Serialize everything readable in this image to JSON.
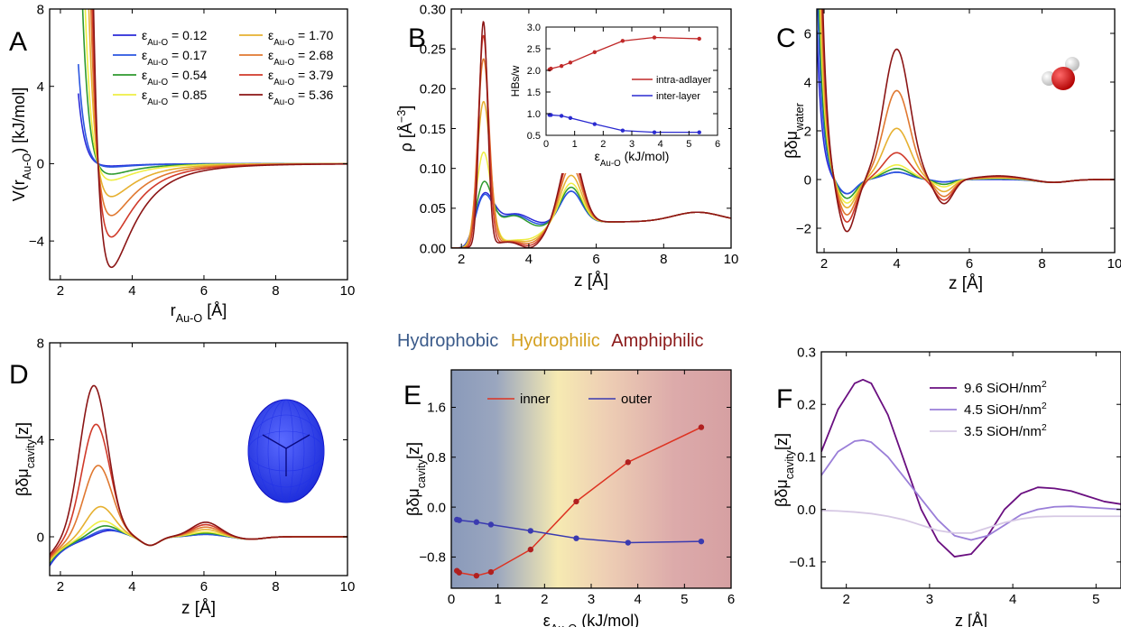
{
  "figure": {
    "category_labels": [
      {
        "text": "Hydrophobic",
        "color": "#3a5a8a"
      },
      {
        "text": "Hydrophilic",
        "color": "#d4a020"
      },
      {
        "text": "Amphiphilic",
        "color": "#8b1a1a"
      }
    ]
  },
  "colors": {
    "eps": [
      "#2a2ad8",
      "#2a55e0",
      "#2e9a2e",
      "#eeee44",
      "#e6b030",
      "#e07830",
      "#d03a2a",
      "#8b1515"
    ],
    "inner": "#dd3322",
    "inner_dots": "#b02020",
    "outer": "#3a3ab0",
    "intra": "#c02828",
    "inter": "#2a2ad0",
    "silanol": [
      "#6a0f80",
      "#9a7ed8",
      "#d6c8e4"
    ]
  },
  "chart_data": [
    {
      "panel": "A",
      "type": "line",
      "xlabel": "r",
      "xlabel_sub": "Au-O",
      "xlabel_unit": " [Å]",
      "ylabel": "V(r",
      "ylabel_sub": "Au-O",
      "ylabel_unit": ") [kJ/mol]",
      "xlim": [
        1.7,
        10
      ],
      "ylim": [
        -6,
        8
      ],
      "xticks": [
        2,
        4,
        6,
        8,
        10
      ],
      "yticks": [
        -4,
        0,
        4,
        8
      ],
      "legend_columns": 2,
      "legend_prefix": "ε",
      "legend_sub": "Au-O",
      "legend_position": "top",
      "epsilons": [
        0.12,
        0.17,
        0.54,
        0.85,
        1.7,
        2.68,
        3.79,
        5.36
      ],
      "series": [
        {
          "name": "0.12"
        },
        {
          "name": "0.17"
        },
        {
          "name": "0.54"
        },
        {
          "name": "0.85"
        },
        {
          "name": "1.70"
        },
        {
          "name": "2.68"
        },
        {
          "name": "3.79"
        },
        {
          "name": "5.36"
        }
      ]
    },
    {
      "panel": "B",
      "type": "line",
      "xlabel": "z [Å]",
      "ylabel": "ρ [Å",
      "ylabel_sup": "−3",
      "ylabel_end": "]",
      "xlim": [
        1.7,
        10
      ],
      "ylim": [
        0,
        0.3
      ],
      "xticks": [
        2,
        4,
        6,
        8,
        10
      ],
      "yticks": [
        0.0,
        0.05,
        0.1,
        0.15,
        0.2,
        0.25,
        0.3
      ],
      "first_peak": {
        "x": 2.65,
        "heights": [
          0.06,
          0.058,
          0.075,
          0.12,
          0.185,
          0.24,
          0.27,
          0.288
        ]
      },
      "second_peak": {
        "x": 5.25,
        "heights": [
          0.04,
          0.04,
          0.045,
          0.05,
          0.06,
          0.072,
          0.082,
          0.09
        ]
      },
      "inset": {
        "type": "line",
        "ylabel": "HBs/w",
        "xlabel": "ε",
        "xlabel_sub": "Au-O",
        "xlabel_unit": " (kJ/mol)",
        "xlim": [
          0,
          6
        ],
        "ylim": [
          0.5,
          3.0
        ],
        "xticks": [
          0,
          1,
          2,
          3,
          4,
          5,
          6
        ],
        "yticks": [
          0.5,
          1.0,
          1.5,
          2.0,
          2.5,
          3.0
        ],
        "legend_position": "center-right",
        "x": [
          0.12,
          0.17,
          0.54,
          0.85,
          1.7,
          2.68,
          3.79,
          5.36
        ],
        "series": [
          {
            "name": "intra-adlayer",
            "values": [
              2.02,
              2.04,
              2.1,
              2.18,
              2.42,
              2.68,
              2.76,
              2.73
            ]
          },
          {
            "name": "inter-layer",
            "values": [
              0.97,
              0.97,
              0.95,
              0.9,
              0.76,
              0.61,
              0.57,
              0.57
            ]
          }
        ]
      }
    },
    {
      "panel": "C",
      "type": "line",
      "xlabel": "z [Å]",
      "ylabel": "βδμ",
      "ylabel_sub": "water",
      "xlim": [
        1.8,
        10
      ],
      "ylim": [
        -3,
        7
      ],
      "xticks": [
        2,
        4,
        6,
        8,
        10
      ],
      "yticks": [
        -2,
        0,
        2,
        4,
        6
      ],
      "first_min": {
        "x": 2.62,
        "depths": [
          -0.6,
          -0.6,
          -0.8,
          -1.0,
          -1.2,
          -1.5,
          -1.8,
          -2.2
        ]
      },
      "peak": {
        "x": 4.0,
        "heights": [
          0.3,
          0.3,
          0.45,
          0.6,
          2.1,
          3.65,
          1.1,
          5.35
        ]
      },
      "second_min": {
        "x": 5.3,
        "depths": [
          -0.1,
          -0.1,
          -0.2,
          -0.3,
          -0.5,
          -0.7,
          -0.85,
          -1.0
        ]
      }
    },
    {
      "panel": "D",
      "type": "line",
      "xlabel": "z [Å]",
      "ylabel": "βδμ",
      "ylabel_sub": "cavity",
      "ylabel_end": "[z]",
      "xlim": [
        1.7,
        10
      ],
      "ylim": [
        -1.6,
        8
      ],
      "xticks": [
        2,
        4,
        6,
        8,
        10
      ],
      "yticks": [
        0,
        4,
        8
      ],
      "peak": {
        "heights": [
          0.3,
          0.35,
          0.5,
          0.7,
          1.3,
          3.0,
          4.7,
          6.3
        ]
      },
      "second_peak": {
        "x": 6.05,
        "heights": [
          0.1,
          0.1,
          0.15,
          0.2,
          0.3,
          0.4,
          0.5,
          0.6
        ]
      }
    },
    {
      "panel": "E",
      "type": "line",
      "xlabel": "ε",
      "xlabel_sub": "Au-O",
      "xlabel_unit": " (kJ/mol)",
      "ylabel": "βδμ",
      "ylabel_sub": "cavity",
      "ylabel_end": "[z]",
      "xlim": [
        0,
        6
      ],
      "ylim": [
        -1.3,
        2.2
      ],
      "xticks": [
        0,
        1,
        2,
        3,
        4,
        5,
        6
      ],
      "yticks": [
        -0.8,
        0.0,
        0.8,
        1.6
      ],
      "legend_position": "top",
      "x": [
        0.12,
        0.17,
        0.54,
        0.85,
        1.7,
        2.68,
        3.79,
        5.36
      ],
      "series": [
        {
          "name": "inner",
          "values": [
            -1.02,
            -1.05,
            -1.1,
            -1.04,
            -0.68,
            0.09,
            0.72,
            1.28
          ]
        },
        {
          "name": "outer",
          "values": [
            -0.2,
            -0.21,
            -0.24,
            -0.28,
            -0.38,
            -0.5,
            -0.57,
            -0.55
          ]
        }
      ]
    },
    {
      "panel": "F",
      "type": "line",
      "xlabel": "z [Å]",
      "ylabel": "βδμ",
      "ylabel_sub": "cavity",
      "ylabel_end": "[z]",
      "xlim": [
        1.7,
        5.3
      ],
      "ylim": [
        -0.15,
        0.3
      ],
      "xticks": [
        2,
        3,
        4,
        5
      ],
      "yticks": [
        -0.1,
        0.0,
        0.1,
        0.2,
        0.3
      ],
      "legend_position": "top-right",
      "legend_sup": "2",
      "series": [
        {
          "name": "9.6 SiOH/nm",
          "x": [
            1.7,
            1.9,
            2.1,
            2.2,
            2.3,
            2.5,
            2.7,
            2.9,
            3.1,
            3.3,
            3.5,
            3.7,
            3.9,
            4.1,
            4.3,
            4.5,
            4.7,
            4.9,
            5.1,
            5.3
          ],
          "values": [
            0.11,
            0.19,
            0.24,
            0.247,
            0.24,
            0.18,
            0.09,
            0.0,
            -0.06,
            -0.09,
            -0.085,
            -0.05,
            0.0,
            0.03,
            0.042,
            0.04,
            0.035,
            0.025,
            0.015,
            0.01
          ]
        },
        {
          "name": "4.5 SiOH/nm",
          "x": [
            1.7,
            1.9,
            2.1,
            2.2,
            2.3,
            2.5,
            2.7,
            2.9,
            3.1,
            3.3,
            3.5,
            3.7,
            3.9,
            4.1,
            4.3,
            4.5,
            4.7,
            4.9,
            5.1,
            5.3
          ],
          "values": [
            0.065,
            0.11,
            0.13,
            0.132,
            0.128,
            0.1,
            0.06,
            0.02,
            -0.02,
            -0.05,
            -0.058,
            -0.05,
            -0.03,
            -0.01,
            0.0,
            0.005,
            0.006,
            0.004,
            0.002,
            0.0
          ]
        },
        {
          "name": "3.5 SiOH/nm",
          "x": [
            1.7,
            1.9,
            2.1,
            2.3,
            2.5,
            2.7,
            2.9,
            3.1,
            3.3,
            3.5,
            3.7,
            3.9,
            4.1,
            4.3,
            4.5,
            4.7,
            4.9,
            5.1,
            5.3
          ],
          "values": [
            -0.002,
            -0.003,
            -0.005,
            -0.008,
            -0.013,
            -0.02,
            -0.03,
            -0.04,
            -0.045,
            -0.045,
            -0.035,
            -0.025,
            -0.018,
            -0.014,
            -0.013,
            -0.013,
            -0.013,
            -0.013,
            -0.013
          ]
        }
      ]
    }
  ]
}
